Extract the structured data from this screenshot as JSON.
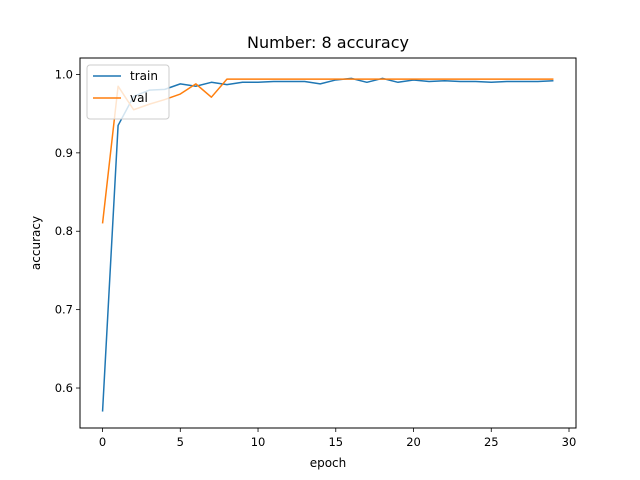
{
  "chart_data": {
    "type": "line",
    "title": "Number: 8 accuracy",
    "xlabel": "epoch",
    "ylabel": "accuracy",
    "xlim": [
      -1.45,
      30.45
    ],
    "ylim": [
      0.549,
      1.021
    ],
    "xticks": [
      0,
      5,
      10,
      15,
      20,
      25,
      30
    ],
    "yticks": [
      0.6,
      0.7,
      0.8,
      0.9,
      1.0
    ],
    "xtick_labels": [
      "0",
      "5",
      "10",
      "15",
      "20",
      "25",
      "30"
    ],
    "ytick_labels": [
      "0.6",
      "0.7",
      "0.8",
      "0.9",
      "1.0"
    ],
    "grid": false,
    "legend_position": "top-left",
    "x": [
      0,
      1,
      2,
      3,
      4,
      5,
      6,
      7,
      8,
      9,
      10,
      11,
      12,
      13,
      14,
      15,
      16,
      17,
      18,
      19,
      20,
      21,
      22,
      23,
      24,
      25,
      26,
      27,
      28,
      29
    ],
    "series": [
      {
        "name": "train",
        "color": "#1f77b4",
        "values": [
          0.57,
          0.935,
          0.972,
          0.98,
          0.981,
          0.988,
          0.985,
          0.99,
          0.987,
          0.99,
          0.99,
          0.991,
          0.991,
          0.991,
          0.988,
          0.993,
          0.995,
          0.99,
          0.995,
          0.99,
          0.993,
          0.991,
          0.992,
          0.991,
          0.991,
          0.99,
          0.991,
          0.991,
          0.991,
          0.992
        ]
      },
      {
        "name": "val",
        "color": "#ff7f0e",
        "values": [
          0.81,
          0.985,
          0.955,
          0.962,
          0.968,
          0.975,
          0.988,
          0.971,
          0.994,
          0.994,
          0.994,
          0.994,
          0.994,
          0.994,
          0.994,
          0.994,
          0.994,
          0.994,
          0.994,
          0.994,
          0.994,
          0.994,
          0.994,
          0.994,
          0.994,
          0.994,
          0.994,
          0.994,
          0.994,
          0.994
        ]
      }
    ]
  }
}
